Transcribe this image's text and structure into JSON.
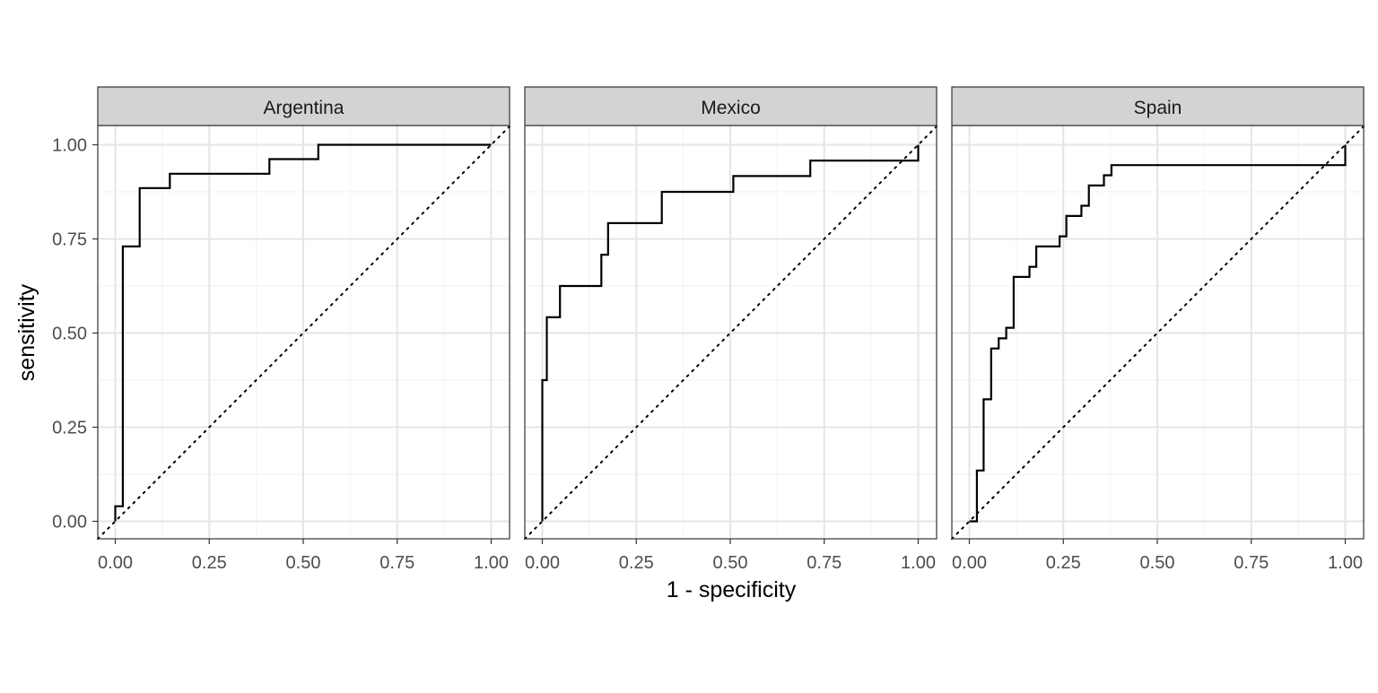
{
  "chart_data": {
    "type": "line",
    "facet_by": "country",
    "xlabel": "1 - specificity",
    "ylabel": "sensitivity",
    "xlim": [
      0,
      1
    ],
    "ylim": [
      0,
      1
    ],
    "x_ticks": [
      "0.00",
      "0.25",
      "0.50",
      "0.75",
      "1.00"
    ],
    "y_ticks": [
      "0.00",
      "0.25",
      "0.50",
      "0.75",
      "1.00"
    ],
    "grid": true,
    "reference_line": "diagonal dotted",
    "step": true,
    "colors": {
      "line": "#000000",
      "strip_fill": "#d3d3d3",
      "grid_major": "#e5e5e5",
      "grid_minor": "#f2f2f2",
      "panel_border": "#333333",
      "text": "#4d4d4d"
    },
    "panels": [
      {
        "title": "Argentina",
        "points": [
          [
            0,
            0
          ],
          [
            0,
            0.04
          ],
          [
            0.02,
            0.04
          ],
          [
            0.02,
            0.73
          ],
          [
            0.065,
            0.73
          ],
          [
            0.065,
            0.885
          ],
          [
            0.145,
            0.885
          ],
          [
            0.145,
            0.923
          ],
          [
            0.41,
            0.923
          ],
          [
            0.41,
            0.962
          ],
          [
            0.54,
            0.962
          ],
          [
            0.54,
            1
          ],
          [
            1,
            1
          ]
        ]
      },
      {
        "title": "Mexico",
        "points": [
          [
            0,
            0
          ],
          [
            0,
            0.375
          ],
          [
            0.012,
            0.375
          ],
          [
            0.012,
            0.542
          ],
          [
            0.047,
            0.542
          ],
          [
            0.047,
            0.625
          ],
          [
            0.157,
            0.625
          ],
          [
            0.157,
            0.708
          ],
          [
            0.175,
            0.708
          ],
          [
            0.175,
            0.792
          ],
          [
            0.318,
            0.792
          ],
          [
            0.318,
            0.875
          ],
          [
            0.508,
            0.875
          ],
          [
            0.508,
            0.917
          ],
          [
            0.713,
            0.917
          ],
          [
            0.713,
            0.958
          ],
          [
            1,
            0.958
          ],
          [
            1,
            1
          ]
        ]
      },
      {
        "title": "Spain",
        "points": [
          [
            0,
            0
          ],
          [
            0.02,
            0
          ],
          [
            0.02,
            0.135
          ],
          [
            0.038,
            0.135
          ],
          [
            0.038,
            0.324
          ],
          [
            0.058,
            0.324
          ],
          [
            0.058,
            0.459
          ],
          [
            0.078,
            0.459
          ],
          [
            0.078,
            0.486
          ],
          [
            0.098,
            0.486
          ],
          [
            0.098,
            0.514
          ],
          [
            0.118,
            0.514
          ],
          [
            0.118,
            0.649
          ],
          [
            0.16,
            0.649
          ],
          [
            0.16,
            0.676
          ],
          [
            0.178,
            0.676
          ],
          [
            0.178,
            0.73
          ],
          [
            0.24,
            0.73
          ],
          [
            0.24,
            0.757
          ],
          [
            0.258,
            0.757
          ],
          [
            0.258,
            0.811
          ],
          [
            0.298,
            0.811
          ],
          [
            0.298,
            0.838
          ],
          [
            0.318,
            0.838
          ],
          [
            0.318,
            0.892
          ],
          [
            0.358,
            0.892
          ],
          [
            0.358,
            0.919
          ],
          [
            0.378,
            0.919
          ],
          [
            0.378,
            0.946
          ],
          [
            1,
            0.946
          ],
          [
            1,
            1
          ]
        ]
      }
    ]
  }
}
